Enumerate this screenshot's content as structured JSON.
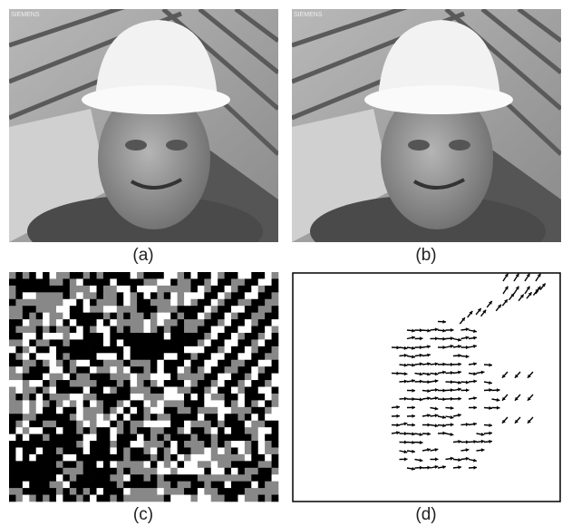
{
  "panels": [
    {
      "caption": "(a)",
      "watermark": "SIEMENS"
    },
    {
      "caption": "(b)",
      "watermark": "SIEMENS"
    },
    {
      "caption": "(c)"
    },
    {
      "caption": "(d)"
    }
  ]
}
